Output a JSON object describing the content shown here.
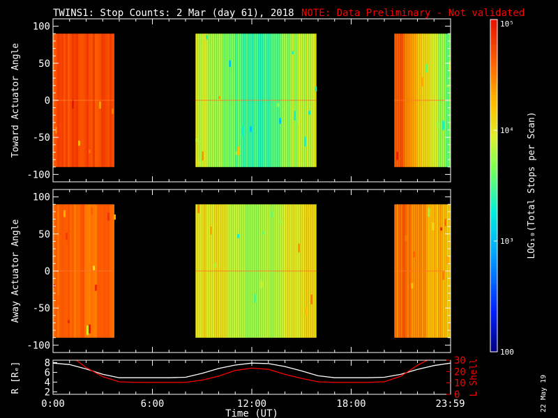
{
  "header": {
    "title": "TWINS1: Stop Counts:  2 Mar (day  61), 2018",
    "note": "NOTE: Data Preliminary - Not validated"
  },
  "colors": {
    "background": "#000000",
    "foreground": "#ffffff",
    "note": "#ff0000",
    "rline": "#ffffff",
    "lshell": "#ff0000"
  },
  "footer": {
    "date_stamp": "22 May 19"
  },
  "chart_data": [
    {
      "id": "toward",
      "type": "heatmap",
      "ylabel": "Toward Actuator Angle",
      "ylim": [
        -110,
        110
      ],
      "yticks": [
        100,
        50,
        0,
        -50,
        -100
      ],
      "data_ylim": [
        -90,
        90
      ],
      "xlim_hours": [
        0,
        24
      ],
      "coverage_hours": [
        [
          0.0,
          3.7
        ],
        [
          8.6,
          15.9
        ],
        [
          20.6,
          23.98
        ]
      ],
      "profile_hours": [
        0,
        1,
        2,
        3,
        3.7,
        8.6,
        9.5,
        10.5,
        11.3,
        12.0,
        12.8,
        13.6,
        14.5,
        15.9,
        20.6,
        21.2,
        22.0,
        23.0,
        23.98
      ],
      "profile_log10": [
        4.75,
        4.75,
        4.74,
        4.72,
        4.7,
        3.95,
        3.85,
        3.7,
        3.5,
        3.4,
        3.45,
        3.6,
        3.8,
        3.95,
        4.8,
        4.55,
        4.2,
        3.9,
        3.6
      ]
    },
    {
      "id": "away",
      "type": "heatmap",
      "ylabel": "Away Actuator Angle",
      "ylim": [
        -110,
        110
      ],
      "yticks": [
        100,
        50,
        0,
        -50,
        -100
      ],
      "data_ylim": [
        -90,
        90
      ],
      "xlim_hours": [
        0,
        24
      ],
      "coverage_hours": [
        [
          0.0,
          3.7
        ],
        [
          8.6,
          15.9
        ],
        [
          20.6,
          23.98
        ]
      ],
      "profile_hours": [
        0,
        1,
        2,
        3,
        3.7,
        8.6,
        9.5,
        10.5,
        11.3,
        12.0,
        12.8,
        13.6,
        14.5,
        15.9,
        20.6,
        21.2,
        22.0,
        23.0,
        23.98
      ],
      "profile_log10": [
        4.65,
        4.62,
        4.6,
        4.62,
        4.6,
        4.1,
        4.05,
        3.95,
        3.8,
        3.75,
        3.8,
        3.9,
        4.0,
        4.1,
        4.55,
        4.6,
        4.45,
        4.3,
        4.2
      ]
    },
    {
      "id": "orbit",
      "type": "line",
      "xlabel": "Time (UT)",
      "xticks_hours": [
        0,
        6,
        12,
        18,
        23.98
      ],
      "xtick_labels": [
        "0:00",
        "6:00",
        "12:00",
        "18:00",
        "23:59"
      ],
      "left_axis": {
        "label": "R [Rₑ]",
        "ylim": [
          1.5,
          8.5
        ],
        "ticks": [
          2,
          4,
          6,
          8
        ]
      },
      "right_axis": {
        "label": "L Shell",
        "ylim": [
          0,
          30
        ],
        "ticks": [
          0,
          10,
          20,
          30
        ]
      },
      "series": [
        {
          "name": "R",
          "axis": "left",
          "x_hours": [
            0,
            1,
            2,
            3,
            4,
            5,
            6,
            7,
            8,
            9,
            10,
            11,
            12,
            13,
            14,
            15,
            16,
            17,
            18,
            19,
            20,
            21,
            22,
            23,
            24
          ],
          "values": [
            7.9,
            7.6,
            6.7,
            5.6,
            4.9,
            4.9,
            4.9,
            4.9,
            5.0,
            5.8,
            6.8,
            7.5,
            7.9,
            7.8,
            7.2,
            6.3,
            5.3,
            4.9,
            4.9,
            4.9,
            5.0,
            5.6,
            6.6,
            7.4,
            7.9
          ]
        },
        {
          "name": "L Shell",
          "axis": "right",
          "x_hours": [
            1.4,
            2,
            3,
            4,
            5,
            6,
            7,
            8,
            9,
            10,
            11,
            12,
            13,
            14,
            15,
            16,
            17,
            18,
            19,
            20,
            21,
            22,
            22.6
          ],
          "values": [
            30,
            23.5,
            15.5,
            11,
            10.5,
            10.5,
            10.5,
            10.5,
            12.5,
            16,
            21,
            23,
            22,
            17.5,
            14,
            11,
            10.5,
            10.5,
            10.5,
            11,
            16,
            25.5,
            30
          ]
        }
      ]
    },
    {
      "id": "colorbar",
      "type": "heatmap",
      "scale": "log",
      "range": [
        100,
        100000
      ],
      "major_ticks": [
        100,
        1000,
        10000,
        100000
      ],
      "tick_labels": [
        "100",
        "10³",
        "10⁴",
        "10⁵"
      ],
      "label": "LOG₁₀(Total Stops per Scan)"
    }
  ]
}
